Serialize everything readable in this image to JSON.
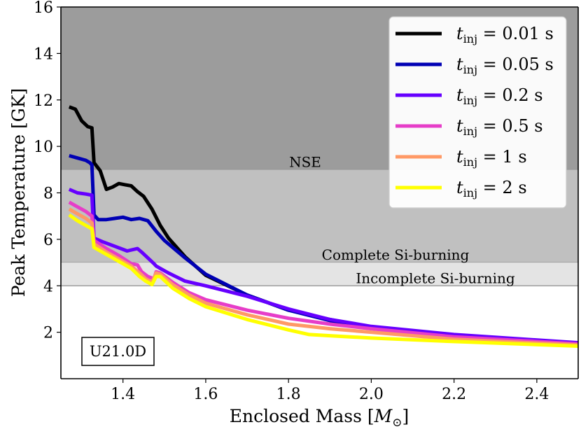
{
  "chart_data": {
    "type": "line",
    "title": "",
    "xlabel": "Enclosed Mass [M_⊙]",
    "xlabel_main": "Enclosed Mass [",
    "xlabel_sym": "M",
    "xlabel_sub": "⊙",
    "xlabel_close": "]",
    "ylabel": "Peak Temperature [GK]",
    "xlim": [
      1.25,
      2.5
    ],
    "ylim": [
      0,
      16
    ],
    "xticks": [
      1.4,
      1.6,
      1.8,
      2.0,
      2.2,
      2.4
    ],
    "xtick_labels": [
      "1.4",
      "1.6",
      "1.8",
      "2.0",
      "2.2",
      "2.4"
    ],
    "yticks": [
      2,
      4,
      6,
      8,
      10,
      12,
      14,
      16
    ],
    "ytick_labels": [
      "2",
      "4",
      "6",
      "8",
      "10",
      "12",
      "14",
      "16"
    ],
    "regions": [
      {
        "name": "NSE",
        "label": "NSE",
        "y_from": 9,
        "y_to": 16,
        "color": "#9c9c9c"
      },
      {
        "name": "complete-si",
        "label": "Complete Si-burning",
        "y_from": 5,
        "y_to": 9,
        "color": "#c0c0c0"
      },
      {
        "name": "incomplete-si",
        "label": "Incomplete Si-burning",
        "y_from": 4,
        "y_to": 5,
        "color": "#e4e4e4"
      }
    ],
    "annotation": "U21.0D",
    "legend_position": "top-right",
    "series": [
      {
        "name": "t_inj = 0.01 s",
        "legend_value": "= 0.01 s",
        "color": "#000000",
        "x": [
          1.27,
          1.285,
          1.3,
          1.315,
          1.325,
          1.33,
          1.345,
          1.36,
          1.375,
          1.39,
          1.405,
          1.42,
          1.435,
          1.45,
          1.47,
          1.49,
          1.51,
          1.55,
          1.6,
          1.7,
          1.8,
          1.9,
          2.0,
          2.2,
          2.5
        ],
        "y": [
          11.7,
          11.6,
          11.1,
          10.85,
          10.8,
          9.3,
          8.95,
          8.15,
          8.25,
          8.4,
          8.35,
          8.3,
          8.05,
          7.85,
          7.3,
          6.6,
          6.05,
          5.25,
          4.45,
          3.6,
          2.95,
          2.55,
          2.2,
          1.85,
          1.5
        ]
      },
      {
        "name": "t_inj = 0.05 s",
        "legend_value": "= 0.05 s",
        "color": "#0000b4",
        "x": [
          1.27,
          1.29,
          1.31,
          1.32,
          1.325,
          1.33,
          1.34,
          1.36,
          1.38,
          1.4,
          1.42,
          1.44,
          1.46,
          1.48,
          1.5,
          1.55,
          1.6,
          1.7,
          1.8,
          1.9,
          2.0,
          2.2,
          2.5
        ],
        "y": [
          9.6,
          9.5,
          9.4,
          9.3,
          9.2,
          7.05,
          6.85,
          6.85,
          6.9,
          6.95,
          6.85,
          6.9,
          6.8,
          6.35,
          5.95,
          5.2,
          4.5,
          3.6,
          2.95,
          2.5,
          2.2,
          1.85,
          1.5
        ]
      },
      {
        "name": "t_inj = 0.2 s",
        "legend_value": "= 0.2 s",
        "color": "#6600ff",
        "x": [
          1.27,
          1.29,
          1.31,
          1.325,
          1.33,
          1.35,
          1.38,
          1.41,
          1.435,
          1.445,
          1.46,
          1.475,
          1.48,
          1.49,
          1.51,
          1.55,
          1.6,
          1.7,
          1.8,
          1.9,
          2.0,
          2.2,
          2.5
        ],
        "y": [
          8.15,
          8.0,
          7.95,
          7.9,
          6.05,
          5.9,
          5.7,
          5.5,
          5.6,
          5.45,
          5.2,
          4.95,
          4.85,
          4.75,
          4.55,
          4.2,
          4.0,
          3.55,
          3.0,
          2.55,
          2.25,
          1.9,
          1.55
        ]
      },
      {
        "name": "t_inj = 0.5 s",
        "legend_value": "= 0.5 s",
        "color": "#e63dc8",
        "x": [
          1.27,
          1.29,
          1.31,
          1.325,
          1.33,
          1.36,
          1.39,
          1.42,
          1.435,
          1.445,
          1.46,
          1.475,
          1.48,
          1.49,
          1.52,
          1.56,
          1.6,
          1.7,
          1.8,
          1.9,
          2.0,
          2.2,
          2.5
        ],
        "y": [
          7.6,
          7.4,
          7.2,
          7.0,
          5.95,
          5.6,
          5.3,
          4.95,
          4.9,
          4.6,
          4.4,
          4.3,
          4.6,
          4.55,
          4.15,
          3.7,
          3.4,
          2.95,
          2.6,
          2.35,
          2.15,
          1.8,
          1.5
        ]
      },
      {
        "name": "t_inj = 1 s",
        "legend_value": "= 1 s",
        "color": "#ff9966",
        "x": [
          1.27,
          1.29,
          1.31,
          1.325,
          1.33,
          1.36,
          1.39,
          1.42,
          1.44,
          1.455,
          1.47,
          1.48,
          1.49,
          1.52,
          1.56,
          1.6,
          1.7,
          1.8,
          1.9,
          2.0,
          2.2,
          2.5
        ],
        "y": [
          7.3,
          7.1,
          6.9,
          6.7,
          5.8,
          5.45,
          5.15,
          4.85,
          4.55,
          4.3,
          4.15,
          4.55,
          4.5,
          4.05,
          3.6,
          3.25,
          2.75,
          2.35,
          2.15,
          2.0,
          1.7,
          1.45
        ]
      },
      {
        "name": "t_inj = 2 s",
        "legend_value": "= 2 s",
        "color": "#ffff00",
        "x": [
          1.27,
          1.29,
          1.31,
          1.325,
          1.33,
          1.36,
          1.39,
          1.42,
          1.44,
          1.455,
          1.47,
          1.48,
          1.49,
          1.52,
          1.56,
          1.6,
          1.7,
          1.8,
          1.85,
          1.9,
          2.0,
          2.2,
          2.5
        ],
        "y": [
          7.05,
          6.8,
          6.6,
          6.45,
          5.65,
          5.35,
          5.05,
          4.75,
          4.4,
          4.2,
          4.05,
          4.4,
          4.4,
          3.9,
          3.45,
          3.1,
          2.55,
          2.1,
          1.9,
          1.85,
          1.75,
          1.6,
          1.4
        ]
      }
    ]
  }
}
